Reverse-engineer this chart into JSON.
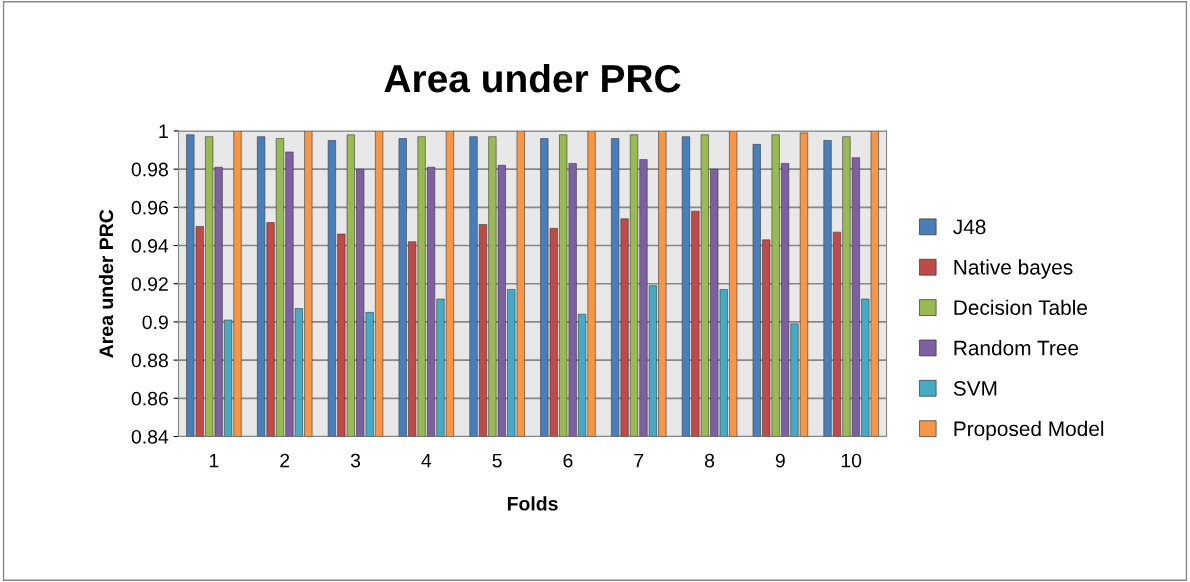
{
  "chart_data": {
    "type": "bar",
    "title": "Area under PRC",
    "xlabel": "Folds",
    "ylabel": "Area under PRC",
    "categories": [
      "1",
      "2",
      "3",
      "4",
      "5",
      "6",
      "7",
      "8",
      "9",
      "10"
    ],
    "series": [
      {
        "name": "J48",
        "color": "#4a7ebb",
        "values": [
          0.998,
          0.997,
          0.995,
          0.996,
          0.997,
          0.996,
          0.996,
          0.997,
          0.993,
          0.995
        ]
      },
      {
        "name": "Native bayes",
        "color": "#be4b48",
        "values": [
          0.95,
          0.952,
          0.946,
          0.942,
          0.951,
          0.949,
          0.954,
          0.958,
          0.943,
          0.947
        ]
      },
      {
        "name": "Decision Table",
        "color": "#98b954",
        "values": [
          0.997,
          0.996,
          0.998,
          0.997,
          0.997,
          0.998,
          0.998,
          0.998,
          0.998,
          0.997
        ]
      },
      {
        "name": "Random Tree",
        "color": "#7d60a0",
        "values": [
          0.981,
          0.989,
          0.98,
          0.981,
          0.982,
          0.983,
          0.985,
          0.98,
          0.983,
          0.986
        ]
      },
      {
        "name": "SVM",
        "color": "#46aac5",
        "values": [
          0.901,
          0.907,
          0.905,
          0.912,
          0.917,
          0.904,
          0.919,
          0.917,
          0.899,
          0.912
        ]
      },
      {
        "name": "Proposed Model",
        "color": "#f79646",
        "values": [
          1.0,
          1.0,
          1.0,
          1.0,
          1.0,
          1.0,
          1.0,
          1.0,
          0.999,
          1.0
        ]
      }
    ],
    "ylim": [
      0.84,
      1.0
    ],
    "yticks": [
      0.84,
      0.86,
      0.88,
      0.9,
      0.92,
      0.94,
      0.96,
      0.98,
      1
    ],
    "grid": "y",
    "legend": "right"
  }
}
